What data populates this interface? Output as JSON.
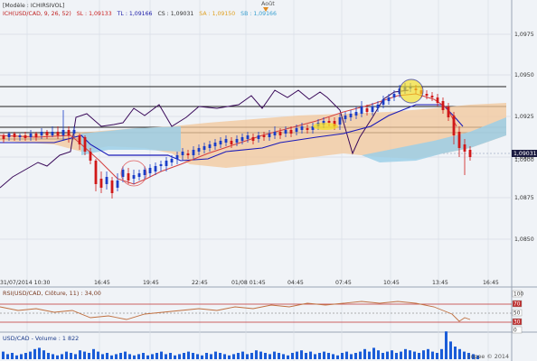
{
  "header": {
    "model_label": "[Modèle : ICHIRSIVOL]",
    "indicator_name": "ICH(USD/CAD, 9, 26, 52)",
    "values": [
      {
        "text": "SL : 1,09133",
        "color": "#cc2222"
      },
      {
        "text": "TL : 1,09166",
        "color": "#1a1aa8"
      },
      {
        "text": "CS : 1,09031",
        "color": "#333333"
      },
      {
        "text": "SA : 1,09150",
        "color": "#e0a020"
      },
      {
        "text": "SB : 1,09166",
        "color": "#3aa0d0"
      }
    ],
    "month_marker": "Août"
  },
  "price_axis": {
    "ticks": [
      "1,0975",
      "1,0950",
      "1,0925",
      "1,0900",
      "1,0875",
      "1,0850"
    ],
    "current_price": "1,09031",
    "current_price_alt": "1,0900"
  },
  "time_axis": {
    "labels": [
      "31/07/2014 10:30",
      "16:45",
      "19:45",
      "22:45",
      "01/08 01:45",
      "04:45",
      "07:45",
      "10:45",
      "13:45",
      "16:45"
    ]
  },
  "rsi_panel": {
    "title": "RSI(USD/CAD, Clôture, 11) : 34,00",
    "levels": [
      "100",
      "70",
      "50",
      "30",
      "0"
    ]
  },
  "volume_panel": {
    "title": "USD/CAD - Volume : 1 822",
    "watermark": "ProRealTime.com © 2014",
    "watermark_visible": "copee © 2014"
  },
  "colors": {
    "background": "#f0f3f7",
    "grid": "#d8dde6",
    "bull_candle": "#1a3ec8",
    "bear_candle": "#d01818",
    "tenkan": "#d44040",
    "kijun": "#1a1ab8",
    "chikou": "#3a0a5a",
    "cloud_bull": "#f3c79a",
    "cloud_bear": "#9ccfe8",
    "rsi_line": "#c07040",
    "volume_bar": "#1a5cd8",
    "highlight_circle": "#f5e020"
  }
}
